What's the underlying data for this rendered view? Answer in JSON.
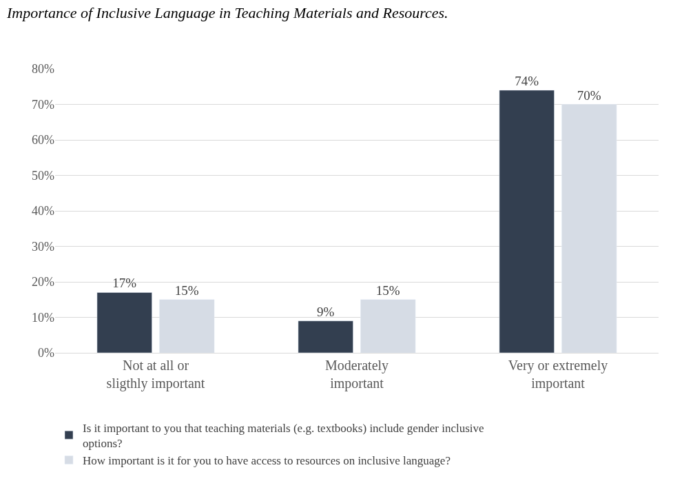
{
  "chart_data": {
    "type": "bar",
    "title": "Importance of Inclusive Language in Teaching Materials and Resources.",
    "categories": [
      "Not at all or\nsligthly important",
      "Moderately\nimportant",
      "Very or extremely\nimportant"
    ],
    "series": [
      {
        "name": "Is it important to you that teaching materials (e.g. textbooks) include gender inclusive\noptions?",
        "color": "#333f50",
        "values": [
          17,
          9,
          74
        ],
        "value_labels": [
          "17%",
          "9%",
          "74%"
        ]
      },
      {
        "name": "How important is it for you to have access to resources on inclusive language?",
        "color": "#d6dce5",
        "values": [
          15,
          15,
          70
        ],
        "value_labels": [
          "15%",
          "15%",
          "70%"
        ]
      }
    ],
    "ylim": [
      0,
      80
    ],
    "yticks": [
      {
        "value": 0,
        "label": "0%"
      },
      {
        "value": 10,
        "label": "10%"
      },
      {
        "value": 20,
        "label": "20%"
      },
      {
        "value": 30,
        "label": "30%"
      },
      {
        "value": 40,
        "label": "40%"
      },
      {
        "value": 50,
        "label": "50%"
      },
      {
        "value": 60,
        "label": "60%"
      },
      {
        "value": 70,
        "label": "70%"
      },
      {
        "value": 80,
        "label": "80%"
      }
    ],
    "grid": "y",
    "legend": "bottom"
  }
}
